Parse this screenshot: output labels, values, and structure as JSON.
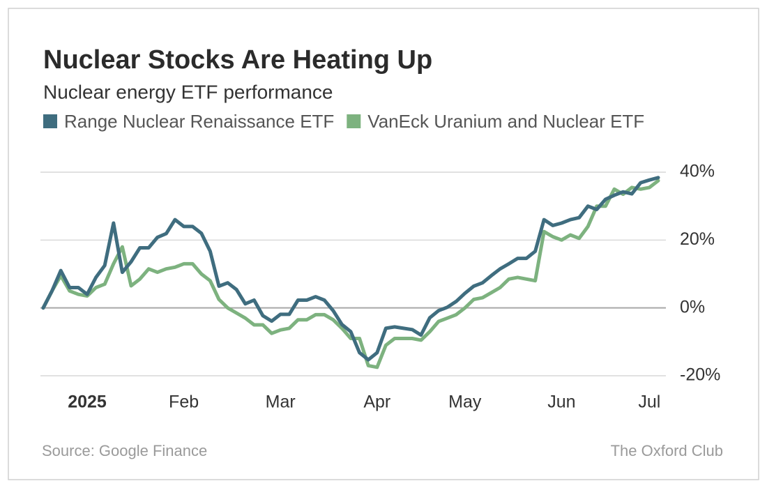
{
  "chart_data": {
    "type": "line",
    "title": "Nuclear Stocks Are Heating Up",
    "subtitle": "Nuclear energy ETF performance",
    "source": "Source: Google Finance",
    "credit": "The Oxford Club",
    "categories": [
      null,
      null,
      null,
      null,
      null,
      "2025",
      null,
      null,
      null,
      null,
      null,
      null,
      null,
      null,
      null,
      null,
      "Feb",
      null,
      null,
      null,
      null,
      null,
      null,
      null,
      null,
      null,
      null,
      "Mar",
      null,
      null,
      null,
      null,
      null,
      null,
      null,
      null,
      null,
      null,
      "Apr",
      null,
      null,
      null,
      null,
      null,
      null,
      null,
      null,
      null,
      "May",
      null,
      null,
      null,
      null,
      null,
      null,
      null,
      null,
      null,
      null,
      "Jun",
      null,
      null,
      null,
      null,
      null,
      null,
      null,
      null,
      null,
      "Jul",
      null
    ],
    "series": [
      {
        "name": "Range Nuclear Renaissance ETF",
        "color": "#3f6d7f",
        "values": [
          0,
          5,
          11,
          6,
          6,
          4,
          9,
          12.5,
          25,
          10.5,
          13.6,
          17.7,
          17.7,
          20.8,
          21.9,
          26,
          24,
          24,
          22,
          16.7,
          6.4,
          7.4,
          5.4,
          1.2,
          2.3,
          -2.3,
          -3.9,
          -1.9,
          -1.9,
          2.3,
          2.3,
          3.3,
          2.3,
          -0.8,
          -4.9,
          -7,
          -13.2,
          -15.3,
          -13.2,
          -6,
          -5.6,
          -6,
          -6.4,
          -8,
          -2.9,
          -0.8,
          0.2,
          1.9,
          4.3,
          6.4,
          7.4,
          9.5,
          11.5,
          13,
          14.6,
          14.6,
          16.7,
          26,
          24.3,
          25,
          26,
          26.6,
          30,
          29,
          32,
          33.2,
          34.2,
          33.6,
          36.9,
          37.7,
          38.4
        ]
      },
      {
        "name": "VanEck Uranium and Nuclear ETF",
        "color": "#7db27f",
        "values": [
          0,
          5,
          9.5,
          5,
          4,
          3.5,
          6,
          7,
          13,
          18,
          6.5,
          8.5,
          11.5,
          10.5,
          11.5,
          12,
          13,
          13,
          10,
          8,
          2.5,
          0,
          -1.5,
          -3,
          -5,
          -5,
          -7.5,
          -6.5,
          -6,
          -3.5,
          -3.5,
          -2,
          -2,
          -3.5,
          -6,
          -9,
          -9,
          -17,
          -17.5,
          -11,
          -9,
          -9,
          -9,
          -9.5,
          -7,
          -4,
          -3,
          -2,
          0,
          2.5,
          3,
          4.5,
          6,
          8.5,
          9,
          8.5,
          8,
          22.5,
          21,
          20,
          21.5,
          20.5,
          24,
          30,
          30,
          35,
          33.5,
          35.5,
          35,
          35.5,
          37.5
        ]
      }
    ],
    "ylim": [
      -20,
      40
    ],
    "yticks": [
      {
        "value": -20,
        "label": "-20%"
      },
      {
        "value": 0,
        "label": "0%"
      },
      {
        "value": 20,
        "label": "20%"
      },
      {
        "value": 40,
        "label": "40%"
      }
    ],
    "grid": true
  }
}
